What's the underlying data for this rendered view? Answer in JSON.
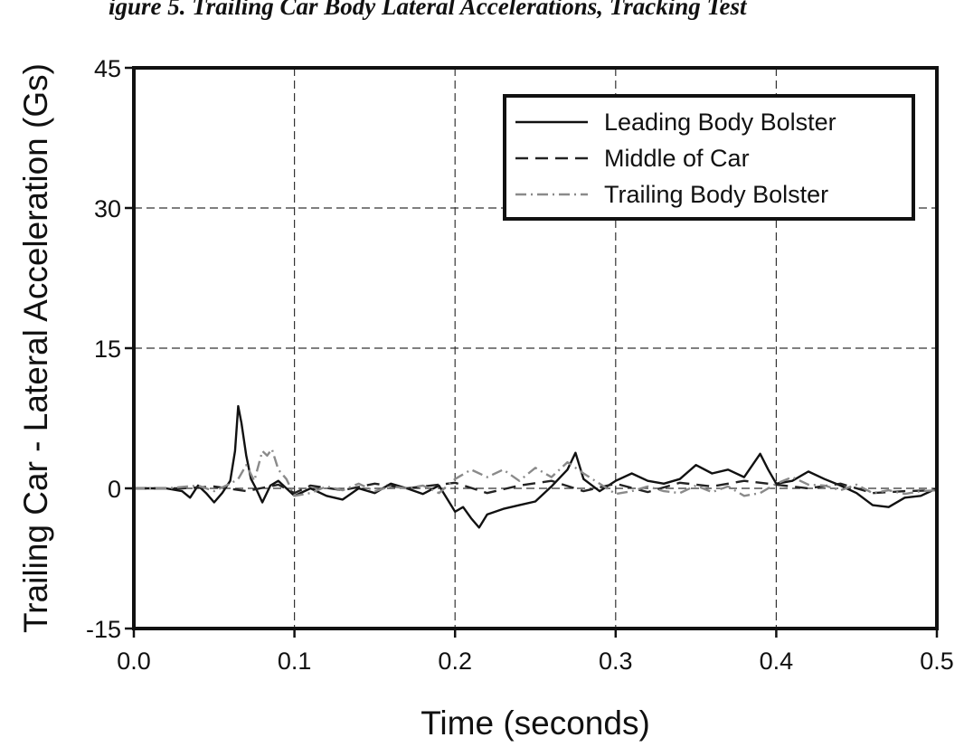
{
  "header_fragment": "igure 5. Trailing Car Body Lateral Accelerations, Tracking Test",
  "chart_data": {
    "type": "line",
    "title": "",
    "xlabel": "Time (seconds)",
    "ylabel": "Trailing Car - Lateral Acceleration (Gs)",
    "xlim": [
      0.0,
      0.5
    ],
    "ylim": [
      -15,
      45
    ],
    "xticks": [
      0.0,
      0.1,
      0.2,
      0.3,
      0.4,
      0.5
    ],
    "xtick_labels": [
      "0.0",
      "0.1",
      "0.2",
      "0.3",
      "0.4",
      "0.5"
    ],
    "yticks": [
      -15,
      0,
      15,
      30,
      45
    ],
    "ytick_labels": [
      "-15",
      "0",
      "15",
      "30",
      "45"
    ],
    "grid": true,
    "legend_position": "top-right",
    "series": [
      {
        "name": "Leading Body Bolster",
        "style": "solid",
        "color": "#111111",
        "x": [
          0.0,
          0.02,
          0.03,
          0.035,
          0.04,
          0.045,
          0.05,
          0.055,
          0.06,
          0.063,
          0.065,
          0.067,
          0.07,
          0.073,
          0.076,
          0.08,
          0.085,
          0.09,
          0.1,
          0.11,
          0.12,
          0.13,
          0.14,
          0.15,
          0.16,
          0.17,
          0.18,
          0.19,
          0.2,
          0.205,
          0.21,
          0.215,
          0.22,
          0.23,
          0.24,
          0.25,
          0.26,
          0.27,
          0.275,
          0.28,
          0.29,
          0.3,
          0.31,
          0.32,
          0.33,
          0.34,
          0.35,
          0.36,
          0.37,
          0.38,
          0.39,
          0.395,
          0.4,
          0.41,
          0.42,
          0.43,
          0.44,
          0.45,
          0.46,
          0.47,
          0.48,
          0.49,
          0.5
        ],
        "y": [
          0.0,
          0.0,
          -0.3,
          -1.0,
          0.3,
          -0.5,
          -1.5,
          -0.5,
          0.8,
          4.0,
          8.8,
          7.0,
          3.5,
          1.0,
          0.0,
          -1.5,
          0.3,
          0.8,
          -0.8,
          0.0,
          -0.8,
          -1.2,
          0.0,
          -0.5,
          0.5,
          0.0,
          -0.6,
          0.3,
          -2.5,
          -2.0,
          -3.2,
          -4.2,
          -2.8,
          -2.2,
          -1.8,
          -1.4,
          0.2,
          2.0,
          3.8,
          1.0,
          -0.3,
          0.8,
          1.6,
          0.8,
          0.5,
          1.0,
          2.5,
          1.6,
          2.0,
          1.2,
          3.7,
          2.0,
          0.5,
          0.8,
          1.8,
          1.0,
          0.3,
          -0.5,
          -1.8,
          -2.0,
          -1.0,
          -0.8,
          0.0
        ]
      },
      {
        "name": "Middle of Car",
        "style": "dashed",
        "color": "#222222",
        "x": [
          0.0,
          0.03,
          0.05,
          0.07,
          0.09,
          0.1,
          0.11,
          0.13,
          0.15,
          0.17,
          0.19,
          0.2,
          0.22,
          0.24,
          0.26,
          0.28,
          0.3,
          0.32,
          0.34,
          0.36,
          0.38,
          0.4,
          0.42,
          0.44,
          0.46,
          0.48,
          0.5
        ],
        "y": [
          0.0,
          0.0,
          0.2,
          -0.3,
          0.4,
          -0.5,
          0.3,
          -0.2,
          0.5,
          0.0,
          0.4,
          0.6,
          -0.5,
          0.3,
          0.8,
          -0.3,
          0.5,
          -0.4,
          0.6,
          0.2,
          0.8,
          0.4,
          0.0,
          0.5,
          -0.5,
          -0.3,
          -0.2
        ]
      },
      {
        "name": "Trailing Body Bolster",
        "style": "dashdot",
        "color": "#8a8a8a",
        "x": [
          0.0,
          0.02,
          0.04,
          0.05,
          0.06,
          0.065,
          0.07,
          0.075,
          0.08,
          0.083,
          0.086,
          0.09,
          0.095,
          0.1,
          0.11,
          0.12,
          0.13,
          0.14,
          0.15,
          0.16,
          0.17,
          0.18,
          0.19,
          0.2,
          0.21,
          0.22,
          0.23,
          0.24,
          0.25,
          0.26,
          0.27,
          0.28,
          0.29,
          0.3,
          0.31,
          0.32,
          0.33,
          0.34,
          0.35,
          0.36,
          0.37,
          0.38,
          0.39,
          0.4,
          0.41,
          0.42,
          0.43,
          0.44,
          0.45,
          0.46,
          0.47,
          0.48,
          0.49,
          0.5
        ],
        "y": [
          0.0,
          0.0,
          0.3,
          -0.3,
          0.5,
          1.0,
          2.5,
          0.8,
          4.0,
          3.5,
          4.2,
          2.0,
          1.0,
          -0.8,
          -0.5,
          0.2,
          -0.2,
          0.5,
          -0.3,
          0.2,
          0.0,
          0.3,
          -0.5,
          1.0,
          2.0,
          1.2,
          2.0,
          0.8,
          2.2,
          1.2,
          2.8,
          1.6,
          0.5,
          -0.6,
          -0.3,
          0.2,
          -0.3,
          -0.5,
          0.3,
          -0.4,
          0.2,
          -0.8,
          -0.5,
          0.5,
          1.2,
          0.4,
          0.3,
          -0.2,
          0.4,
          -0.5,
          -0.2,
          -0.6,
          -0.3,
          -0.2
        ]
      }
    ]
  }
}
